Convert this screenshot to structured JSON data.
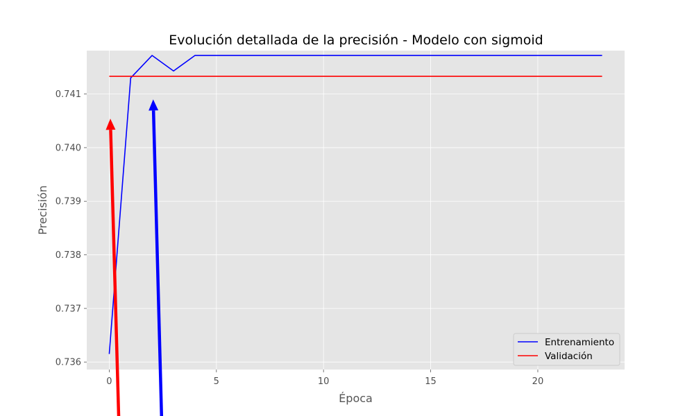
{
  "chart_data": {
    "type": "line",
    "title": "Evolución detallada de la precisión - Modelo con sigmoid",
    "xlabel": "Época",
    "ylabel": "Precisión",
    "xlim": [
      -1.05,
      24.05
    ],
    "ylim": [
      0.73586,
      0.74181
    ],
    "xticks": [
      0,
      5,
      10,
      15,
      20
    ],
    "xtick_labels": [
      "0",
      "5",
      "10",
      "15",
      "20"
    ],
    "yticks": [
      0.736,
      0.737,
      0.738,
      0.739,
      0.74,
      0.741
    ],
    "ytick_labels": [
      "0.736",
      "0.737",
      "0.738",
      "0.739",
      "0.740",
      "0.741"
    ],
    "grid": true,
    "legend_position": "lower-right",
    "series": [
      {
        "name": "Entrenamiento",
        "color": "#0000ff",
        "x": [
          0,
          1,
          2,
          3,
          4,
          5,
          6,
          7,
          8,
          9,
          10,
          11,
          12,
          13,
          14,
          15,
          16,
          17,
          18,
          19,
          20,
          21,
          22,
          23
        ],
        "y": [
          0.73615,
          0.7413,
          0.74172,
          0.74143,
          0.74172,
          0.74172,
          0.74172,
          0.74172,
          0.74172,
          0.74172,
          0.74172,
          0.74172,
          0.74172,
          0.74172,
          0.74172,
          0.74172,
          0.74172,
          0.74172,
          0.74172,
          0.74172,
          0.74172,
          0.74172,
          0.74172,
          0.74172
        ]
      },
      {
        "name": "Validación",
        "color": "#ff0000",
        "x": [
          0,
          1,
          2,
          3,
          4,
          5,
          6,
          7,
          8,
          9,
          10,
          11,
          12,
          13,
          14,
          15,
          16,
          17,
          18,
          19,
          20,
          21,
          22,
          23
        ],
        "y": [
          0.74133,
          0.74133,
          0.74133,
          0.74133,
          0.74133,
          0.74133,
          0.74133,
          0.74133,
          0.74133,
          0.74133,
          0.74133,
          0.74133,
          0.74133,
          0.74133,
          0.74133,
          0.74133,
          0.74133,
          0.74133,
          0.74133,
          0.74133,
          0.74133,
          0.74133,
          0.74133,
          0.74133
        ]
      }
    ],
    "annotations": [
      {
        "type": "arrow",
        "color": "#ff0000",
        "tip": [
          0.05,
          0.74054
        ],
        "tail": [
          0.45,
          0.73485
        ]
      },
      {
        "type": "arrow",
        "color": "#0000ff",
        "tip": [
          2.05,
          0.7409
        ],
        "tail": [
          2.45,
          0.73485
        ]
      }
    ]
  }
}
